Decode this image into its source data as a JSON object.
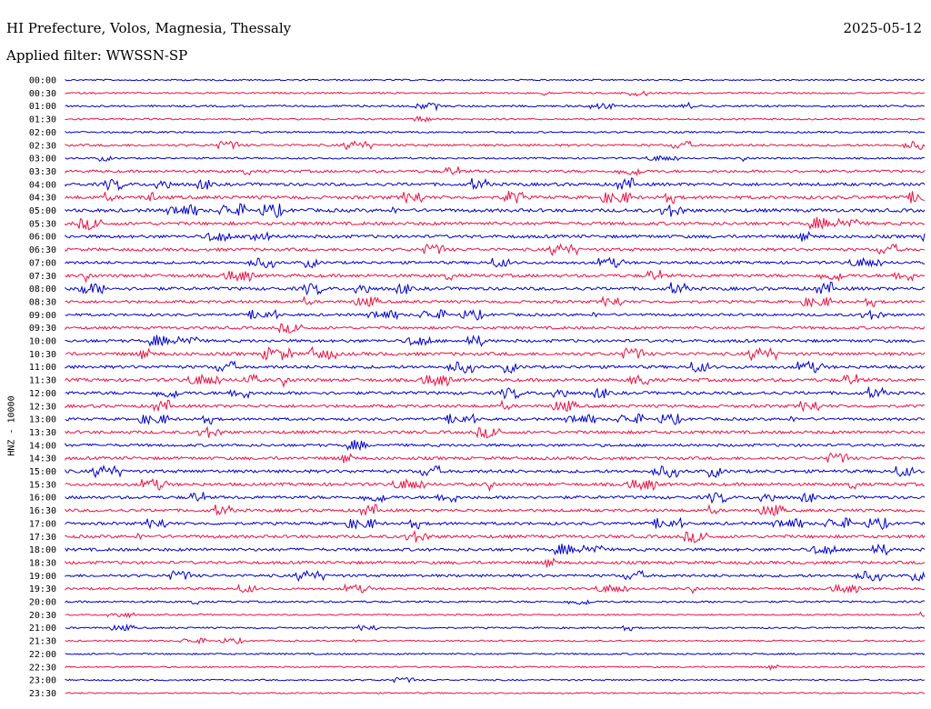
{
  "header": {
    "title": "HI Prefecture, Volos, Magnesia, Thessaly",
    "date": "2025-05-12",
    "filter": "Applied filter: WWSSN-SP"
  },
  "chart_data": {
    "type": "line",
    "title": "HI Prefecture, Volos, Magnesia, Thessaly",
    "subtitle": "Applied filter: WWSSN-SP",
    "date": "2025-05-12",
    "ylabel": "HNZ - 10000",
    "colors": [
      "#0000cc",
      "#ee1144"
    ],
    "rows": [
      {
        "time": "00:00",
        "activity": 0.15
      },
      {
        "time": "00:30",
        "activity": 0.2
      },
      {
        "time": "01:00",
        "activity": 0.3
      },
      {
        "time": "01:30",
        "activity": 0.2
      },
      {
        "time": "02:00",
        "activity": 0.25
      },
      {
        "time": "02:30",
        "activity": 0.45
      },
      {
        "time": "03:00",
        "activity": 0.2
      },
      {
        "time": "03:30",
        "activity": 0.55
      },
      {
        "time": "04:00",
        "activity": 0.75
      },
      {
        "time": "04:30",
        "activity": 0.8
      },
      {
        "time": "05:00",
        "activity": 0.85
      },
      {
        "time": "05:30",
        "activity": 0.8
      },
      {
        "time": "06:00",
        "activity": 0.75
      },
      {
        "time": "06:30",
        "activity": 0.7
      },
      {
        "time": "07:00",
        "activity": 0.6
      },
      {
        "time": "07:30",
        "activity": 0.75
      },
      {
        "time": "08:00",
        "activity": 0.8
      },
      {
        "time": "08:30",
        "activity": 0.6
      },
      {
        "time": "09:00",
        "activity": 0.55
      },
      {
        "time": "09:30",
        "activity": 0.6
      },
      {
        "time": "10:00",
        "activity": 0.7
      },
      {
        "time": "10:30",
        "activity": 0.8
      },
      {
        "time": "11:00",
        "activity": 0.75
      },
      {
        "time": "11:30",
        "activity": 0.8
      },
      {
        "time": "12:00",
        "activity": 0.75
      },
      {
        "time": "12:30",
        "activity": 0.7
      },
      {
        "time": "13:00",
        "activity": 0.6
      },
      {
        "time": "13:30",
        "activity": 0.7
      },
      {
        "time": "14:00",
        "activity": 0.6
      },
      {
        "time": "14:30",
        "activity": 0.7
      },
      {
        "time": "15:00",
        "activity": 0.75
      },
      {
        "time": "15:30",
        "activity": 0.75
      },
      {
        "time": "16:00",
        "activity": 0.7
      },
      {
        "time": "16:30",
        "activity": 0.7
      },
      {
        "time": "17:00",
        "activity": 0.65
      },
      {
        "time": "17:30",
        "activity": 0.75
      },
      {
        "time": "18:00",
        "activity": 0.7
      },
      {
        "time": "18:30",
        "activity": 0.7
      },
      {
        "time": "19:00",
        "activity": 0.6
      },
      {
        "time": "19:30",
        "activity": 0.45
      },
      {
        "time": "20:00",
        "activity": 0.3
      },
      {
        "time": "20:30",
        "activity": 0.15
      },
      {
        "time": "21:00",
        "activity": 0.2
      },
      {
        "time": "21:30",
        "activity": 0.15
      },
      {
        "time": "22:00",
        "activity": 0.2
      },
      {
        "time": "22:30",
        "activity": 0.15
      },
      {
        "time": "23:00",
        "activity": 0.15
      },
      {
        "time": "23:30",
        "activity": 0.1
      }
    ]
  }
}
